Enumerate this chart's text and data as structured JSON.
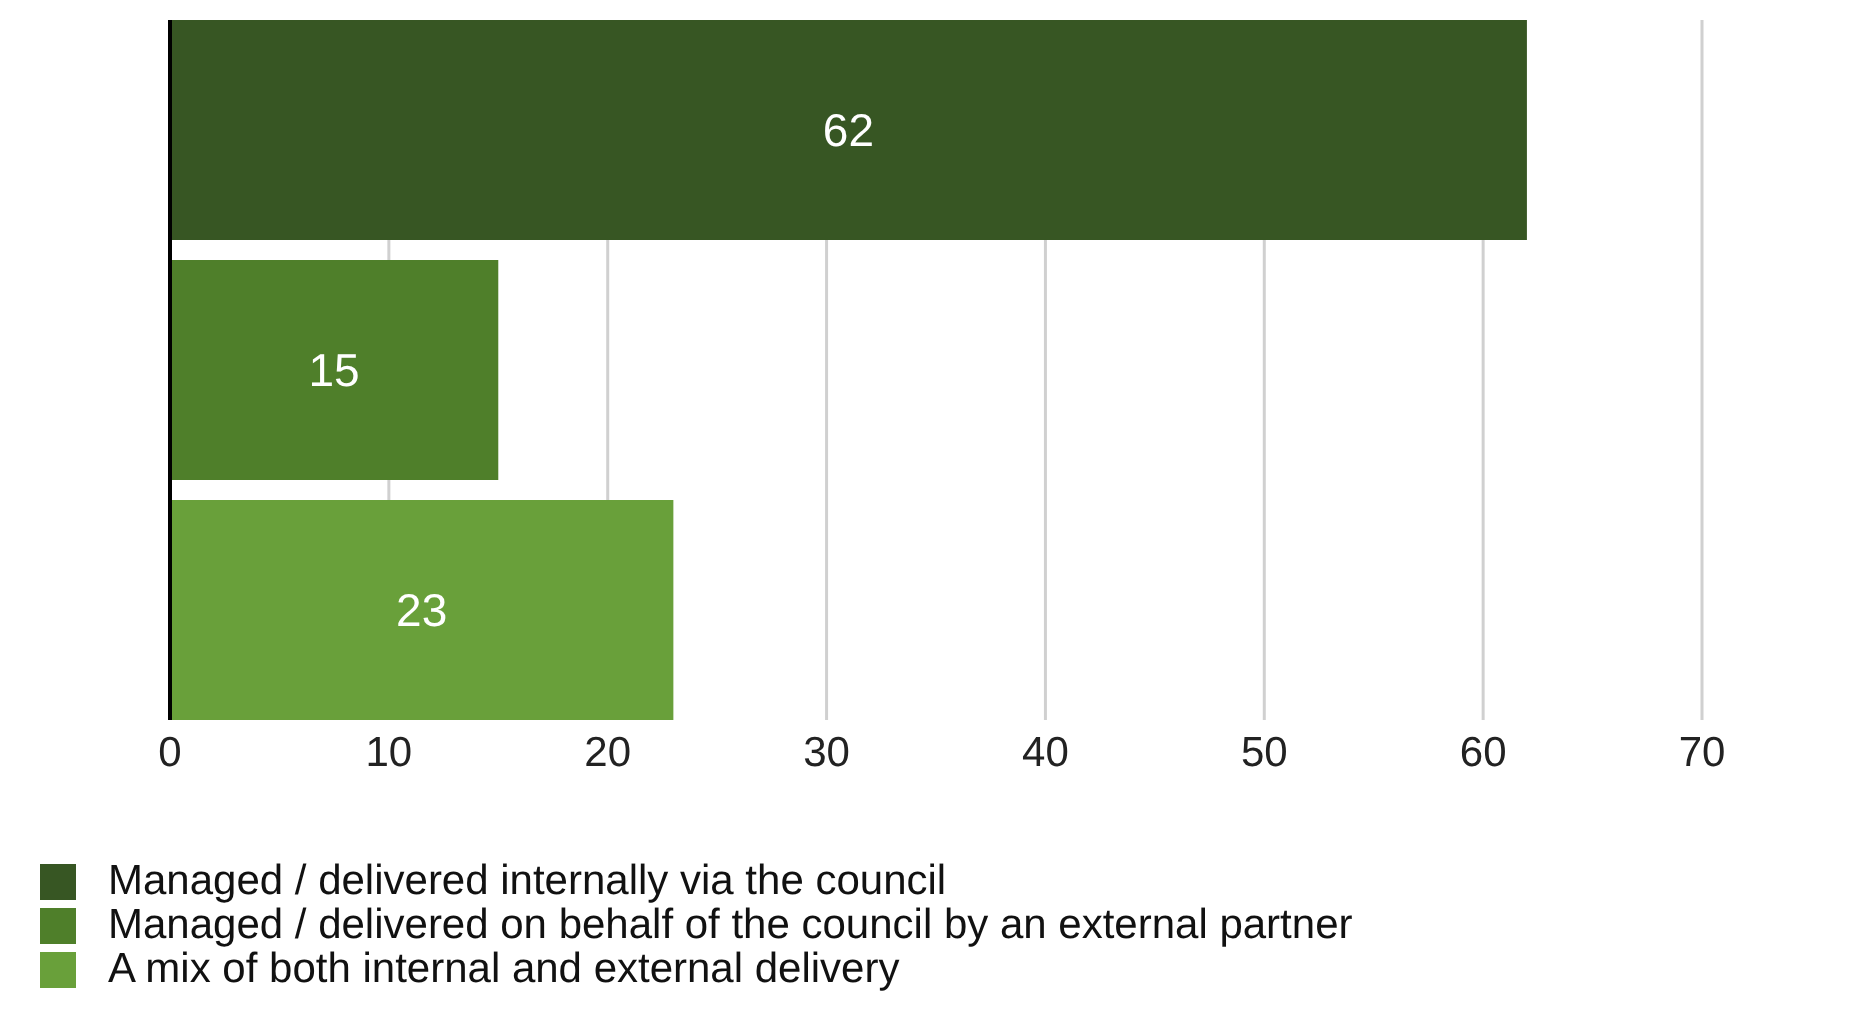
{
  "chart_data": {
    "type": "bar",
    "orientation": "horizontal",
    "categories": [
      null
    ],
    "series": [
      {
        "name": "Managed / delivered internally via the council",
        "color": "#375623",
        "values": [
          62
        ]
      },
      {
        "name": "Managed / delivered on behalf of the council by an external partner",
        "color": "#4f7f2a",
        "values": [
          15
        ]
      },
      {
        "name": "A mix of both internal and external delivery",
        "color": "#69a03a",
        "values": [
          23
        ]
      }
    ],
    "xlim": [
      0,
      70
    ],
    "xticks": [
      0,
      10,
      20,
      30,
      40,
      50,
      60,
      70
    ],
    "grid": "x",
    "data_labels": true,
    "legend": "bottom"
  }
}
